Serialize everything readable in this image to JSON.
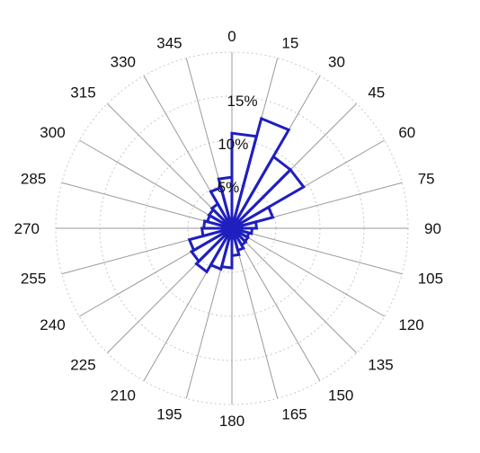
{
  "chart_data": {
    "type": "rose",
    "title": "",
    "theta_unit": "degrees",
    "theta_zero": "top",
    "theta_direction": "clockwise",
    "radial_unit": "%",
    "radial_max": 20,
    "rings": [
      5,
      10,
      15,
      20
    ],
    "ring_labels": [
      {
        "value": 5,
        "label": "5%"
      },
      {
        "value": 10,
        "label": "10%"
      },
      {
        "value": 15,
        "label": "15%"
      }
    ],
    "angle_ticks": [
      0,
      15,
      30,
      45,
      60,
      75,
      90,
      105,
      120,
      135,
      150,
      165,
      180,
      195,
      210,
      225,
      240,
      255,
      270,
      285,
      300,
      315,
      330,
      345
    ],
    "bin_width_deg": 15,
    "bins": [
      {
        "start": 0,
        "end": 15,
        "value": 10.8
      },
      {
        "start": 15,
        "end": 30,
        "value": 12.9
      },
      {
        "start": 30,
        "end": 45,
        "value": 9.4
      },
      {
        "start": 45,
        "end": 60,
        "value": 9.4
      },
      {
        "start": 60,
        "end": 75,
        "value": 4.8
      },
      {
        "start": 75,
        "end": 90,
        "value": 2.8
      },
      {
        "start": 90,
        "end": 105,
        "value": 2.3
      },
      {
        "start": 105,
        "end": 120,
        "value": 2.0
      },
      {
        "start": 120,
        "end": 135,
        "value": 2.1
      },
      {
        "start": 135,
        "end": 150,
        "value": 2.2
      },
      {
        "start": 150,
        "end": 165,
        "value": 2.6
      },
      {
        "start": 165,
        "end": 180,
        "value": 3.1
      },
      {
        "start": 180,
        "end": 195,
        "value": 4.5
      },
      {
        "start": 195,
        "end": 210,
        "value": 4.8
      },
      {
        "start": 210,
        "end": 225,
        "value": 5.7
      },
      {
        "start": 225,
        "end": 240,
        "value": 5.3
      },
      {
        "start": 240,
        "end": 255,
        "value": 5.0
      },
      {
        "start": 255,
        "end": 270,
        "value": 3.4
      },
      {
        "start": 270,
        "end": 285,
        "value": 3.2
      },
      {
        "start": 285,
        "end": 300,
        "value": 2.9
      },
      {
        "start": 300,
        "end": 315,
        "value": 3.0
      },
      {
        "start": 315,
        "end": 330,
        "value": 3.2
      },
      {
        "start": 330,
        "end": 345,
        "value": 4.8
      },
      {
        "start": 345,
        "end": 360,
        "value": 5.8
      }
    ],
    "grid": true,
    "colors": {
      "bars": "#1f1fbf",
      "spokes": "#9a9a9a",
      "rings": "#c8c8c8",
      "text": "#111111"
    }
  }
}
